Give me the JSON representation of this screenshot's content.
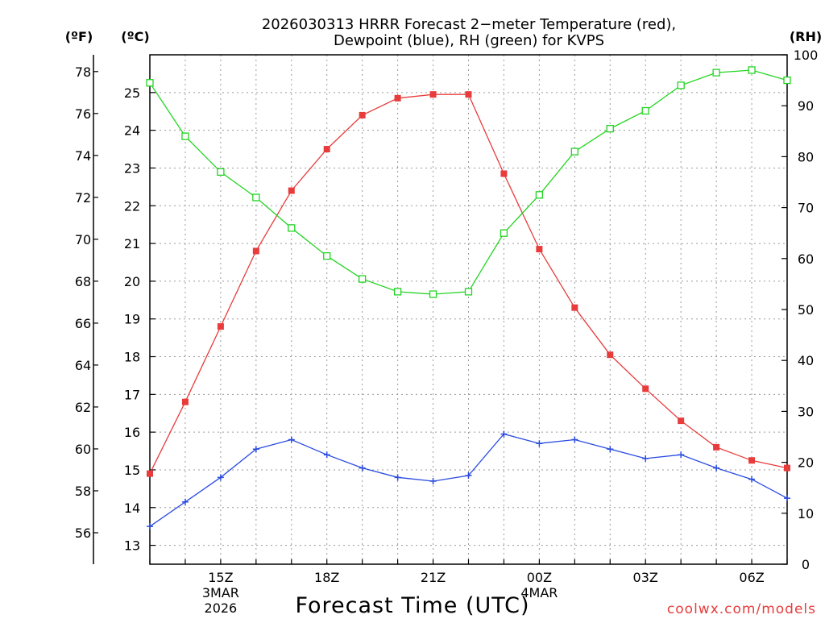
{
  "chart_data": {
    "type": "line",
    "title_line1": "2026030313 HRRR Forecast 2−meter Temperature (red),",
    "title_line2": "Dewpoint (blue), RH (green) for KVPS",
    "xlabel": "Forecast Time (UTC)",
    "watermark": "coolwx.com/models",
    "unit_f": "(ºF)",
    "unit_c": "(ºC)",
    "unit_rh": "(RH)",
    "x_hours": [
      13,
      14,
      15,
      16,
      17,
      18,
      19,
      20,
      21,
      22,
      23,
      24,
      25,
      26,
      27,
      28,
      29,
      30,
      31
    ],
    "x_ticks": [
      {
        "hour": 15,
        "label": "15Z",
        "sub1": "3MAR",
        "sub2": "2026"
      },
      {
        "hour": 18,
        "label": "18Z",
        "sub1": "",
        "sub2": ""
      },
      {
        "hour": 21,
        "label": "21Z",
        "sub1": "",
        "sub2": ""
      },
      {
        "hour": 24,
        "label": "00Z",
        "sub1": "4MAR",
        "sub2": ""
      },
      {
        "hour": 27,
        "label": "03Z",
        "sub1": "",
        "sub2": ""
      },
      {
        "hour": 30,
        "label": "06Z",
        "sub1": "",
        "sub2": ""
      }
    ],
    "celsius_range": [
      12.5,
      26
    ],
    "celsius_ticks": [
      13,
      14,
      15,
      16,
      17,
      18,
      19,
      20,
      21,
      22,
      23,
      24,
      25
    ],
    "fahrenheit_ticks": [
      56,
      58,
      60,
      62,
      64,
      66,
      68,
      70,
      72,
      74,
      76,
      78
    ],
    "rh_range": [
      0,
      100
    ],
    "rh_ticks": [
      0,
      10,
      20,
      30,
      40,
      50,
      60,
      70,
      80,
      90,
      100
    ],
    "colors": {
      "temperature": "#e83c3c",
      "dewpoint": "#2a4be0",
      "rh": "#22d422",
      "grid": "#9a9a9a"
    },
    "series": [
      {
        "name": "Temperature",
        "unit": "C",
        "marker": "filled-square",
        "values": [
          14.9,
          16.8,
          18.8,
          20.8,
          22.4,
          23.5,
          24.4,
          24.85,
          24.95,
          24.95,
          22.85,
          20.85,
          19.3,
          18.05,
          17.15,
          16.3,
          15.6,
          15.25,
          15.05
        ]
      },
      {
        "name": "Dewpoint",
        "unit": "C",
        "marker": "plus",
        "values": [
          13.5,
          14.15,
          14.8,
          15.55,
          15.8,
          15.4,
          15.05,
          14.8,
          14.7,
          14.85,
          15.95,
          15.7,
          15.8,
          15.55,
          15.3,
          15.4,
          15.05,
          14.75,
          14.25
        ]
      },
      {
        "name": "RH",
        "unit": "%",
        "marker": "open-square",
        "values": [
          94.5,
          84,
          77,
          72,
          66,
          60.5,
          56,
          53.5,
          53,
          53.5,
          65,
          72.5,
          81,
          85.5,
          89,
          94,
          96.5,
          97,
          95
        ]
      }
    ]
  }
}
